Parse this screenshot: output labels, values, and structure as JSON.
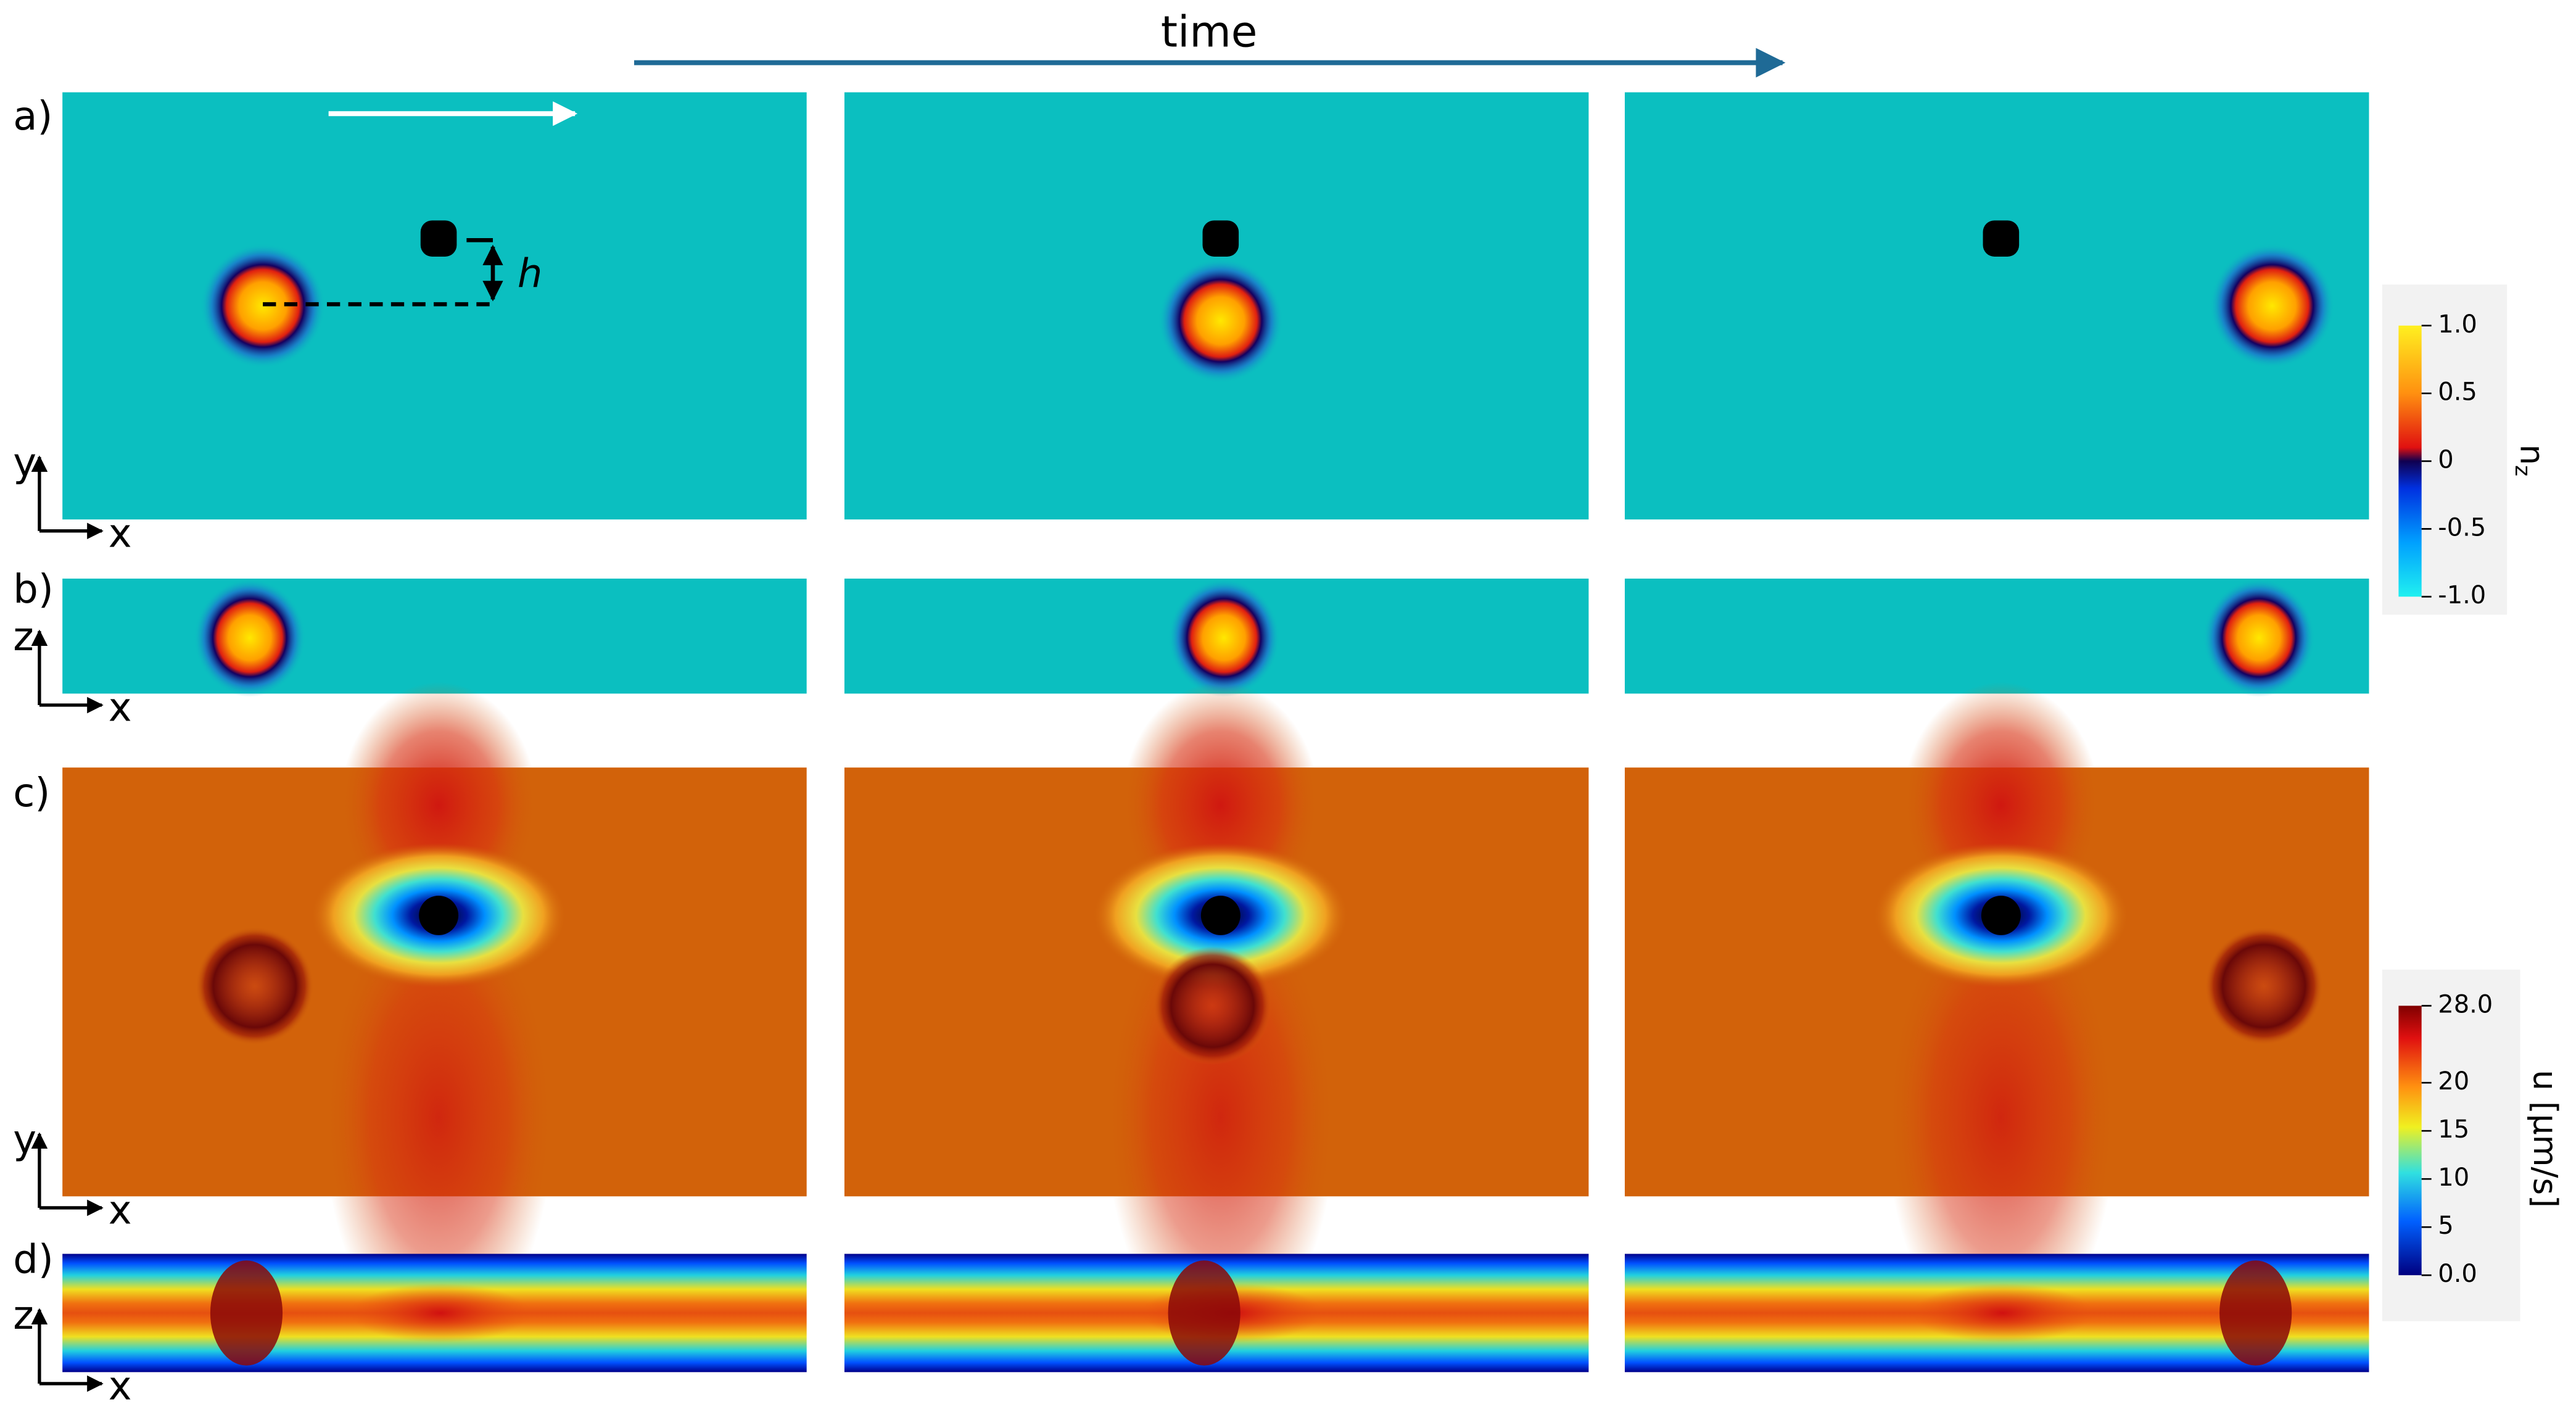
{
  "header": {
    "time": "time"
  },
  "panels": [
    {
      "label": "a)",
      "axes": {
        "vertical": "y",
        "horizontal": "x"
      },
      "annotation": "h"
    },
    {
      "label": "b)",
      "axes": {
        "vertical": "z",
        "horizontal": "x"
      }
    },
    {
      "label": "c)",
      "axes": {
        "vertical": "y",
        "horizontal": "x"
      }
    },
    {
      "label": "d)",
      "axes": {
        "vertical": "z",
        "horizontal": "x"
      }
    }
  ],
  "colorbars": [
    {
      "label": "n",
      "label_sub": "z",
      "lim": [
        -1,
        1
      ],
      "ticks": [
        {
          "value": 1,
          "label": "1.0"
        },
        {
          "value": 0.5,
          "label": "0.5"
        },
        0,
        {
          "value": -0.5,
          "label": "-0.5"
        },
        {
          "value": -1,
          "label": "-1.0"
        }
      ]
    },
    {
      "label": "u [μm/s]",
      "lim": [
        0,
        28
      ],
      "ticks": [
        {
          "value": 28,
          "label": "28.0"
        },
        20,
        15,
        10,
        5,
        {
          "value": 0,
          "label": "0.0"
        }
      ]
    }
  ]
}
